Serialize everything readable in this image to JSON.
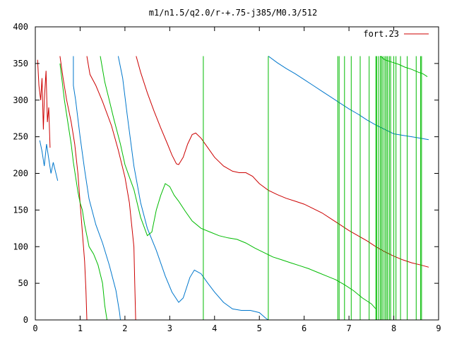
{
  "chart_data": {
    "type": "line",
    "title": "m1/n1.5/q2.0/r-+.75-j385/M0.3/512",
    "xlabel": "",
    "ylabel": "",
    "xlim": [
      0,
      9
    ],
    "ylim": [
      0,
      400
    ],
    "x_ticks": [
      "0",
      "1",
      "2",
      "3",
      "4",
      "5",
      "6",
      "7",
      "8",
      "9"
    ],
    "y_ticks": [
      "0",
      "50",
      "100",
      "150",
      "200",
      "250",
      "300",
      "350",
      "400"
    ],
    "grid": false,
    "legend": {
      "position": "top-right",
      "entries": [
        "fort.23"
      ]
    },
    "series": [
      {
        "name": "fort.23",
        "color": "#cc0000",
        "segments": [
          [
            [
              2.25,
              360
            ],
            [
              2.35,
              338
            ],
            [
              2.5,
              310
            ],
            [
              2.65,
              285
            ],
            [
              2.8,
              262
            ],
            [
              2.95,
              240
            ],
            [
              3.05,
              225
            ],
            [
              3.15,
              213
            ],
            [
              3.2,
              212
            ],
            [
              3.3,
              222
            ],
            [
              3.4,
              240
            ],
            [
              3.5,
              253
            ],
            [
              3.58,
              255
            ],
            [
              3.7,
              248
            ],
            [
              3.85,
              235
            ],
            [
              4.0,
              222
            ],
            [
              4.2,
              210
            ],
            [
              4.4,
              203
            ],
            [
              4.55,
              201
            ],
            [
              4.7,
              201
            ],
            [
              4.85,
              196
            ],
            [
              5.0,
              186
            ],
            [
              5.2,
              177
            ],
            [
              5.4,
              171
            ],
            [
              5.6,
              166
            ],
            [
              5.8,
              162
            ],
            [
              6.0,
              158
            ],
            [
              6.2,
              152
            ],
            [
              6.4,
              146
            ],
            [
              6.6,
              138
            ],
            [
              6.8,
              130
            ],
            [
              7.0,
              122
            ],
            [
              7.2,
              115
            ],
            [
              7.4,
              108
            ],
            [
              7.6,
              100
            ],
            [
              7.8,
              93
            ],
            [
              8.0,
              87
            ],
            [
              8.2,
              82
            ],
            [
              8.4,
              78
            ],
            [
              8.6,
              75
            ],
            [
              8.78,
              72
            ]
          ],
          [
            [
              1.15,
              360
            ],
            [
              1.22,
              335
            ],
            [
              1.35,
              320
            ],
            [
              1.5,
              298
            ],
            [
              1.7,
              265
            ],
            [
              1.85,
              232
            ],
            [
              2.0,
              195
            ],
            [
              2.1,
              160
            ],
            [
              2.15,
              130
            ],
            [
              2.2,
              100
            ],
            [
              2.22,
              50
            ],
            [
              2.24,
              0
            ]
          ],
          [
            [
              0.55,
              360
            ],
            [
              0.62,
              330
            ],
            [
              0.7,
              300
            ],
            [
              0.8,
              270
            ],
            [
              0.88,
              240
            ],
            [
              0.95,
              200
            ],
            [
              1.0,
              160
            ],
            [
              1.05,
              120
            ],
            [
              1.1,
              80
            ],
            [
              1.13,
              40
            ],
            [
              1.15,
              0
            ]
          ],
          [
            [
              0.05,
              355
            ],
            [
              0.08,
              320
            ],
            [
              0.12,
              300
            ],
            [
              0.15,
              330
            ],
            [
              0.18,
              260
            ],
            [
              0.2,
              300
            ],
            [
              0.24,
              340
            ],
            [
              0.27,
              270
            ],
            [
              0.3,
              290
            ],
            [
              0.33,
              235
            ]
          ]
        ]
      },
      {
        "name": "",
        "color": "#0077cc",
        "segments": [
          [
            [
              5.2,
              360
            ],
            [
              5.4,
              351
            ],
            [
              5.6,
              343
            ],
            [
              5.8,
              336
            ],
            [
              6.0,
              328
            ],
            [
              6.2,
              320
            ],
            [
              6.4,
              312
            ],
            [
              6.6,
              304
            ],
            [
              6.8,
              296
            ],
            [
              7.0,
              288
            ],
            [
              7.2,
              281
            ],
            [
              7.4,
              273
            ],
            [
              7.6,
              266
            ],
            [
              7.8,
              260
            ],
            [
              8.0,
              254
            ],
            [
              8.2,
              252
            ],
            [
              8.4,
              250
            ],
            [
              8.6,
              248
            ],
            [
              8.78,
              246
            ]
          ],
          [
            [
              1.85,
              360
            ],
            [
              1.95,
              330
            ],
            [
              2.05,
              280
            ],
            [
              2.2,
              210
            ],
            [
              2.35,
              160
            ],
            [
              2.5,
              125
            ],
            [
              2.7,
              95
            ],
            [
              2.9,
              60
            ],
            [
              3.05,
              38
            ],
            [
              3.2,
              24
            ],
            [
              3.3,
              30
            ],
            [
              3.45,
              58
            ],
            [
              3.55,
              68
            ],
            [
              3.7,
              63
            ],
            [
              3.85,
              50
            ],
            [
              4.0,
              38
            ],
            [
              4.2,
              24
            ],
            [
              4.4,
              15
            ],
            [
              4.6,
              13
            ],
            [
              4.8,
              13
            ],
            [
              5.0,
              10
            ],
            [
              5.15,
              2
            ],
            [
              5.2,
              0
            ]
          ],
          [
            [
              0.85,
              360
            ],
            [
              0.85,
              320
            ],
            [
              0.9,
              300
            ],
            [
              1.0,
              250
            ],
            [
              1.1,
              205
            ],
            [
              1.2,
              165
            ],
            [
              1.35,
              130
            ],
            [
              1.5,
              105
            ],
            [
              1.65,
              75
            ],
            [
              1.8,
              40
            ],
            [
              1.88,
              10
            ],
            [
              1.9,
              0
            ]
          ],
          [
            [
              0.1,
              245
            ],
            [
              0.15,
              230
            ],
            [
              0.2,
              210
            ],
            [
              0.25,
              240
            ],
            [
              0.3,
              220
            ],
            [
              0.35,
              200
            ],
            [
              0.4,
              215
            ],
            [
              0.5,
              190
            ]
          ]
        ]
      },
      {
        "name": "",
        "color": "#00bb00",
        "segments": [
          [
            [
              1.45,
              360
            ],
            [
              1.55,
              325
            ],
            [
              1.65,
              300
            ],
            [
              1.75,
              275
            ],
            [
              1.9,
              240
            ],
            [
              2.0,
              212
            ],
            [
              2.1,
              195
            ],
            [
              2.2,
              178
            ],
            [
              2.35,
              140
            ],
            [
              2.5,
              115
            ],
            [
              2.6,
              120
            ],
            [
              2.7,
              150
            ],
            [
              2.8,
              170
            ],
            [
              2.9,
              186
            ],
            [
              3.0,
              182
            ],
            [
              3.1,
              170
            ],
            [
              3.2,
              162
            ],
            [
              3.35,
              148
            ],
            [
              3.5,
              135
            ],
            [
              3.7,
              125
            ],
            [
              3.9,
              120
            ],
            [
              4.1,
              115
            ],
            [
              4.3,
              112
            ],
            [
              4.5,
              110
            ],
            [
              4.7,
              105
            ],
            [
              4.9,
              98
            ],
            [
              5.1,
              92
            ],
            [
              5.3,
              86
            ],
            [
              5.5,
              82
            ],
            [
              5.7,
              78
            ],
            [
              5.9,
              74
            ],
            [
              6.1,
              70
            ],
            [
              6.3,
              65
            ],
            [
              6.5,
              60
            ],
            [
              6.7,
              55
            ],
            [
              6.9,
              48
            ],
            [
              7.1,
              40
            ],
            [
              7.3,
              30
            ],
            [
              7.5,
              22
            ],
            [
              7.6,
              15
            ]
          ],
          [
            [
              0.55,
              350
            ],
            [
              0.6,
              325
            ],
            [
              0.65,
              300
            ],
            [
              0.7,
              280
            ],
            [
              0.75,
              260
            ],
            [
              0.8,
              240
            ],
            [
              0.85,
              215
            ],
            [
              0.9,
              195
            ],
            [
              0.95,
              175
            ],
            [
              1.0,
              160
            ],
            [
              1.05,
              150
            ],
            [
              1.1,
              130
            ],
            [
              1.15,
              115
            ],
            [
              1.2,
              100
            ],
            [
              1.3,
              90
            ],
            [
              1.4,
              75
            ],
            [
              1.5,
              50
            ],
            [
              1.55,
              20
            ],
            [
              1.6,
              0
            ]
          ],
          [
            [
              7.7,
              360
            ],
            [
              7.8,
              355
            ],
            [
              7.95,
              352
            ],
            [
              8.1,
              349
            ],
            [
              8.25,
              345
            ],
            [
              8.4,
              342
            ],
            [
              8.55,
              338
            ],
            [
              8.65,
              336
            ],
            [
              8.75,
              332
            ]
          ]
        ]
      }
    ],
    "spikes": {
      "color": "#00bb00",
      "x": [
        3.75,
        5.2,
        6.75,
        6.78,
        6.9,
        7.05,
        7.25,
        7.45,
        7.6,
        7.62,
        7.66,
        7.7,
        7.73,
        7.76,
        7.8,
        7.83,
        7.86,
        7.9,
        7.93,
        8.0,
        8.05,
        8.15,
        8.3,
        8.5,
        8.6,
        8.62
      ]
    }
  }
}
